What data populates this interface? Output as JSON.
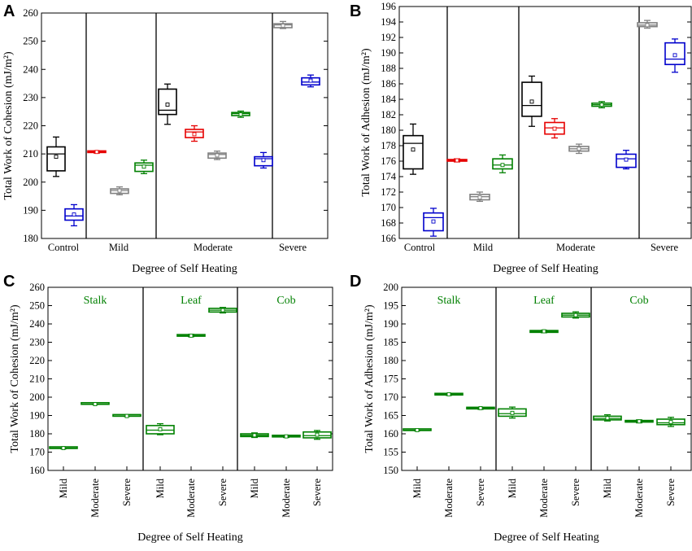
{
  "chart_data": [
    {
      "panel": "A",
      "type": "box",
      "ylabel": "Total Work of Cohesion (mJ/m²)",
      "xlabel": "Degree of Self Heating",
      "ylim": [
        180,
        260
      ],
      "yticks": [
        180,
        190,
        200,
        210,
        220,
        230,
        240,
        250,
        260
      ],
      "group_labels": [
        "Control",
        "Mild",
        "Moderate",
        "Severe"
      ],
      "boxes": [
        {
          "group": "Control",
          "color": "#000000",
          "wmin": 202,
          "q1": 204,
          "median": 210,
          "q3": 212.5,
          "wmax": 216,
          "mean": 209
        },
        {
          "group": "Control",
          "color": "#0000cc",
          "wmin": 184.5,
          "q1": 186.5,
          "median": 188,
          "q3": 190.5,
          "wmax": 192,
          "mean": 188.5
        },
        {
          "group": "Mild",
          "color": "#e60000",
          "wmin": 210.3,
          "q1": 210.5,
          "median": 210.7,
          "q3": 210.9,
          "wmax": 211.1,
          "mean": 210.7
        },
        {
          "group": "Mild",
          "color": "#808080",
          "wmin": 195.5,
          "q1": 196,
          "median": 197,
          "q3": 197.6,
          "wmax": 198.3,
          "mean": 197
        },
        {
          "group": "Mild",
          "color": "#008000",
          "wmin": 203,
          "q1": 203.8,
          "median": 206,
          "q3": 206.8,
          "wmax": 207.8,
          "mean": 205.5
        },
        {
          "group": "Moderate",
          "color": "#000000",
          "wmin": 220.5,
          "q1": 224,
          "median": 225.5,
          "q3": 233,
          "wmax": 234.8,
          "mean": 227.5
        },
        {
          "group": "Moderate",
          "color": "#e60000",
          "wmin": 214.5,
          "q1": 215.8,
          "median": 217.8,
          "q3": 218.7,
          "wmax": 220,
          "mean": 217
        },
        {
          "group": "Moderate",
          "color": "#808080",
          "wmin": 208,
          "q1": 208.5,
          "median": 209.8,
          "q3": 210.3,
          "wmax": 211,
          "mean": 209.5
        },
        {
          "group": "Moderate",
          "color": "#008000",
          "wmin": 223,
          "q1": 223.6,
          "median": 224.3,
          "q3": 224.7,
          "wmax": 225.2,
          "mean": 224
        },
        {
          "group": "Moderate",
          "color": "#0000cc",
          "wmin": 205,
          "q1": 205.8,
          "median": 208.3,
          "q3": 209,
          "wmax": 210.5,
          "mean": 207.8
        },
        {
          "group": "Severe",
          "color": "#808080",
          "wmin": 254.5,
          "q1": 254.8,
          "median": 255.8,
          "q3": 256.2,
          "wmax": 257,
          "mean": 255.5
        },
        {
          "group": "Severe",
          "color": "#0000cc",
          "wmin": 233.8,
          "q1": 234.5,
          "median": 235.5,
          "q3": 237,
          "wmax": 238,
          "mean": 236
        }
      ]
    },
    {
      "panel": "B",
      "type": "box",
      "ylabel": "Total Work of Adhesion (mJ/m²)",
      "xlabel": "Degree of Self Heating",
      "ylim": [
        166,
        196
      ],
      "yticks": [
        166,
        168,
        170,
        172,
        174,
        176,
        178,
        180,
        182,
        184,
        186,
        188,
        190,
        192,
        194,
        196
      ],
      "group_labels": [
        "Control",
        "Mild",
        "Moderate",
        "Severe"
      ],
      "boxes": [
        {
          "group": "Control",
          "color": "#000000",
          "wmin": 174.3,
          "q1": 175,
          "median": 178.3,
          "q3": 179.3,
          "wmax": 180.8,
          "mean": 177.5
        },
        {
          "group": "Control",
          "color": "#0000cc",
          "wmin": 166.3,
          "q1": 167,
          "median": 168.7,
          "q3": 169.3,
          "wmax": 169.9,
          "mean": 168.2
        },
        {
          "group": "Mild",
          "color": "#e60000",
          "wmin": 175.9,
          "q1": 176,
          "median": 176.1,
          "q3": 176.2,
          "wmax": 176.3,
          "mean": 176.1
        },
        {
          "group": "Mild",
          "color": "#808080",
          "wmin": 170.8,
          "q1": 171,
          "median": 171.4,
          "q3": 171.7,
          "wmax": 172,
          "mean": 171.3
        },
        {
          "group": "Mild",
          "color": "#008000",
          "wmin": 174.5,
          "q1": 175,
          "median": 175.5,
          "q3": 176.3,
          "wmax": 176.8,
          "mean": 175.5
        },
        {
          "group": "Moderate",
          "color": "#000000",
          "wmin": 180.5,
          "q1": 181.8,
          "median": 183.2,
          "q3": 186.2,
          "wmax": 187,
          "mean": 183.7
        },
        {
          "group": "Moderate",
          "color": "#e60000",
          "wmin": 179,
          "q1": 179.5,
          "median": 180.3,
          "q3": 181,
          "wmax": 181.5,
          "mean": 180.2
        },
        {
          "group": "Moderate",
          "color": "#808080",
          "wmin": 177,
          "q1": 177.3,
          "median": 177.6,
          "q3": 177.9,
          "wmax": 178.2,
          "mean": 177.6
        },
        {
          "group": "Moderate",
          "color": "#008000",
          "wmin": 182.9,
          "q1": 183.1,
          "median": 183.3,
          "q3": 183.5,
          "wmax": 183.7,
          "mean": 183.3
        },
        {
          "group": "Moderate",
          "color": "#0000cc",
          "wmin": 175,
          "q1": 175.2,
          "median": 176.3,
          "q3": 176.9,
          "wmax": 177.4,
          "mean": 176.2
        },
        {
          "group": "Severe",
          "color": "#808080",
          "wmin": 193.2,
          "q1": 193.4,
          "median": 193.6,
          "q3": 193.9,
          "wmax": 194.2,
          "mean": 193.6
        },
        {
          "group": "Severe",
          "color": "#0000cc",
          "wmin": 187.5,
          "q1": 188.5,
          "median": 189.2,
          "q3": 191.3,
          "wmax": 191.8,
          "mean": 189.7
        }
      ]
    },
    {
      "panel": "C",
      "type": "box",
      "ylabel": "Total Work of Cohesion (mJ/m²)",
      "xlabel": "Degree of Self Heating",
      "ylim": [
        160,
        260
      ],
      "yticks": [
        160,
        170,
        180,
        190,
        200,
        210,
        220,
        230,
        240,
        250,
        260
      ],
      "sections": [
        "Stalk",
        "Leaf",
        "Cob"
      ],
      "categories": [
        "Mild",
        "Moderate",
        "Severe",
        "Mild",
        "Moderate",
        "Severe",
        "Mild",
        "Moderate",
        "Severe"
      ],
      "color": "#008000",
      "boxes": [
        {
          "section": "Stalk",
          "category": "Mild",
          "wmin": 171.8,
          "q1": 172,
          "median": 172.2,
          "q3": 172.5,
          "wmax": 172.8,
          "mean": 172.2
        },
        {
          "section": "Stalk",
          "category": "Moderate",
          "wmin": 196,
          "q1": 196.1,
          "median": 196.2,
          "q3": 196.4,
          "wmax": 196.5,
          "mean": 196.2
        },
        {
          "section": "Stalk",
          "category": "Severe",
          "wmin": 189.5,
          "q1": 189.6,
          "median": 189.7,
          "q3": 189.8,
          "wmax": 189.9,
          "mean": 189.7
        },
        {
          "section": "Leaf",
          "category": "Mild",
          "wmin": 179.5,
          "q1": 180,
          "median": 182,
          "q3": 184.5,
          "wmax": 185.5,
          "mean": 182.5
        },
        {
          "section": "Leaf",
          "category": "Moderate",
          "wmin": 233,
          "q1": 233.3,
          "median": 233.6,
          "q3": 234,
          "wmax": 234.3,
          "mean": 233.6
        },
        {
          "section": "Leaf",
          "category": "Severe",
          "wmin": 246,
          "q1": 246.5,
          "median": 247.5,
          "q3": 248.5,
          "wmax": 249,
          "mean": 247.5
        },
        {
          "section": "Cob",
          "category": "Mild",
          "wmin": 178,
          "q1": 178.5,
          "median": 179.2,
          "q3": 180,
          "wmax": 180.5,
          "mean": 179.2
        },
        {
          "section": "Cob",
          "category": "Moderate",
          "wmin": 178,
          "q1": 178.3,
          "median": 178.6,
          "q3": 178.9,
          "wmax": 179.2,
          "mean": 178.6
        },
        {
          "section": "Cob",
          "category": "Severe",
          "wmin": 177,
          "q1": 177.8,
          "median": 179,
          "q3": 181,
          "wmax": 181.8,
          "mean": 179.5
        }
      ]
    },
    {
      "panel": "D",
      "type": "box",
      "ylabel": "Total Work of Adhesion (mJ/m²)",
      "xlabel": "Degree of Self Heating",
      "ylim": [
        150,
        200
      ],
      "yticks": [
        150,
        155,
        160,
        165,
        170,
        175,
        180,
        185,
        190,
        195,
        200
      ],
      "sections": [
        "Stalk",
        "Leaf",
        "Cob"
      ],
      "categories": [
        "Mild",
        "Moderate",
        "Severe",
        "Mild",
        "Moderate",
        "Severe",
        "Mild",
        "Moderate",
        "Severe"
      ],
      "color": "#008000",
      "boxes": [
        {
          "section": "Stalk",
          "category": "Mild",
          "wmin": 160.8,
          "q1": 160.9,
          "median": 161,
          "q3": 161.2,
          "wmax": 161.3,
          "mean": 161
        },
        {
          "section": "Stalk",
          "category": "Moderate",
          "wmin": 170.5,
          "q1": 170.6,
          "median": 170.8,
          "q3": 170.9,
          "wmax": 171,
          "mean": 170.8
        },
        {
          "section": "Stalk",
          "category": "Severe",
          "wmin": 166.7,
          "q1": 166.8,
          "median": 167,
          "q3": 167.1,
          "wmax": 167.2,
          "mean": 167
        },
        {
          "section": "Leaf",
          "category": "Mild",
          "wmin": 164.3,
          "q1": 164.8,
          "median": 165.5,
          "q3": 166.8,
          "wmax": 167.3,
          "mean": 165.7
        },
        {
          "section": "Leaf",
          "category": "Moderate",
          "wmin": 187.6,
          "q1": 187.7,
          "median": 188,
          "q3": 188.2,
          "wmax": 188.3,
          "mean": 188
        },
        {
          "section": "Leaf",
          "category": "Severe",
          "wmin": 191.6,
          "q1": 191.9,
          "median": 192.4,
          "q3": 192.9,
          "wmax": 193.3,
          "mean": 192.4
        },
        {
          "section": "Cob",
          "category": "Mild",
          "wmin": 163.5,
          "q1": 163.8,
          "median": 164.2,
          "q3": 164.8,
          "wmax": 165.2,
          "mean": 164.3
        },
        {
          "section": "Cob",
          "category": "Moderate",
          "wmin": 163,
          "q1": 163.2,
          "median": 163.4,
          "q3": 163.6,
          "wmax": 163.8,
          "mean": 163.4
        },
        {
          "section": "Cob",
          "category": "Severe",
          "wmin": 162,
          "q1": 162.5,
          "median": 163,
          "q3": 164,
          "wmax": 164.5,
          "mean": 163.2
        }
      ]
    }
  ]
}
